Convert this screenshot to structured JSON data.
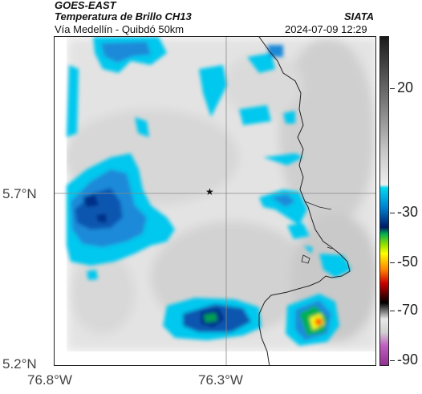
{
  "header": {
    "satellite": "GOES-EAST",
    "product": "Temperatura de Brillo CH13",
    "route": "Vía Medellín - Quibdó 50km",
    "brand": "SIATA",
    "datetime": "2024-07-09 12:29"
  },
  "map": {
    "lat_labels": [
      "5.7°N",
      "5.2°N"
    ],
    "lon_labels": [
      "76.8°W",
      "76.3°W"
    ],
    "marker": "★"
  },
  "colorbar": {
    "ticks": [
      "20",
      "-30",
      "-50",
      "-70",
      "-90"
    ],
    "colors": [
      "#1a1a1a",
      "#7a7a7a",
      "#dcdcdc",
      "#00d8f0",
      "#0060b0",
      "#001a66",
      "#00b050",
      "#ffff00",
      "#ff6000",
      "#cc0000",
      "#000000",
      "#e0e0e0",
      "#b040b0"
    ]
  }
}
